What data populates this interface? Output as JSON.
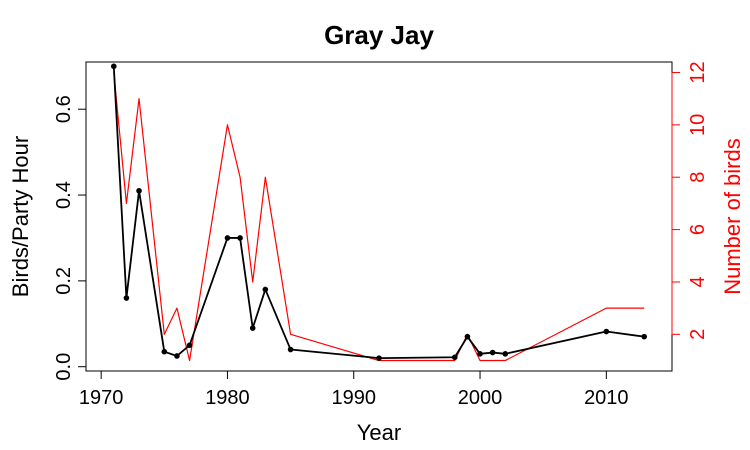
{
  "chart_data": {
    "type": "line",
    "title": "Gray Jay",
    "xlabel": "Year",
    "ylabel_left": "Birds/Party Hour",
    "ylabel_right": "Number of birds",
    "xlim": [
      1968.8,
      2015.2
    ],
    "ylim_left": [
      -0.01,
      0.71
    ],
    "ylim_right": [
      0.6,
      12.4
    ],
    "x_ticks": [
      1970,
      1980,
      1990,
      2000,
      2010
    ],
    "y_ticks_left": [
      0.0,
      0.2,
      0.4,
      0.6
    ],
    "y_ticks_right": [
      2,
      4,
      6,
      8,
      10,
      12
    ],
    "grid": false,
    "colors": {
      "left_series": "#000000",
      "right_series": "#ff0000",
      "axis": "#000000",
      "right_axis": "#ff0000"
    },
    "series": [
      {
        "axis": "left",
        "markers": true,
        "points": [
          [
            1971,
            0.7
          ],
          [
            1972,
            0.16
          ],
          [
            1973,
            0.41
          ],
          [
            1975,
            0.035
          ],
          [
            1976,
            0.025
          ],
          [
            1977,
            0.05
          ],
          [
            1980,
            0.3
          ],
          [
            1981,
            0.3
          ],
          [
            1982,
            0.09
          ],
          [
            1983,
            0.18
          ],
          [
            1985,
            0.04
          ],
          [
            1992,
            0.02
          ],
          [
            1998,
            0.022
          ],
          [
            1999,
            0.07
          ],
          [
            2000,
            0.03
          ],
          [
            2001,
            0.033
          ],
          [
            2002,
            0.03
          ],
          [
            2010,
            0.082
          ],
          [
            2013,
            0.07
          ]
        ]
      },
      {
        "axis": "right",
        "markers": false,
        "points": [
          [
            1971,
            12
          ],
          [
            1972,
            7
          ],
          [
            1973,
            11
          ],
          [
            1975,
            2
          ],
          [
            1976,
            3
          ],
          [
            1977,
            1
          ],
          [
            1980,
            10
          ],
          [
            1981,
            8
          ],
          [
            1982,
            4
          ],
          [
            1983,
            8
          ],
          [
            1985,
            2
          ],
          [
            1992,
            1
          ],
          [
            1998,
            1
          ],
          [
            1999,
            2
          ],
          [
            2000,
            1
          ],
          [
            2001,
            1
          ],
          [
            2002,
            1
          ],
          [
            2010,
            3
          ],
          [
            2013,
            3
          ]
        ]
      }
    ]
  }
}
